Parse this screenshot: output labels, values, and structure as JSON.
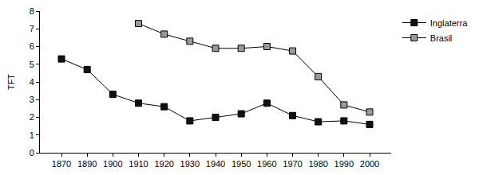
{
  "chart_data": {
    "type": "line",
    "y_label": "TFT",
    "categories": [
      "1870",
      "1890",
      "1900",
      "1910",
      "1920",
      "1930",
      "1940",
      "1950",
      "1960",
      "1970",
      "1980",
      "1990",
      "2000"
    ],
    "series": [
      {
        "name": "Inglaterra",
        "color": "#111111",
        "marker": "square",
        "values": [
          5.3,
          4.7,
          3.3,
          2.8,
          2.6,
          1.8,
          2.0,
          2.2,
          2.8,
          2.1,
          1.75,
          1.8,
          1.6
        ]
      },
      {
        "name": "Brasil",
        "color": "#999999",
        "marker": "square",
        "values": [
          null,
          null,
          null,
          7.3,
          6.7,
          6.3,
          5.9,
          5.9,
          6.0,
          5.75,
          4.3,
          2.7,
          2.3
        ]
      }
    ],
    "ylim": [
      0,
      8
    ],
    "yticks": [
      0,
      1,
      2,
      3,
      4,
      5,
      6,
      7,
      8
    ],
    "grid": false,
    "legend": "top right"
  }
}
